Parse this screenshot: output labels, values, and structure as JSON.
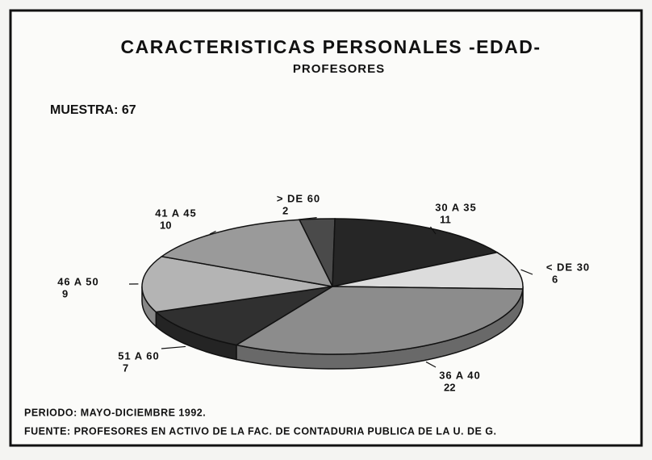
{
  "chart_data": {
    "type": "pie",
    "title": "CARACTERISTICAS PERSONALES -EDAD-",
    "subtitle": "PROFESORES",
    "annotations": [
      "MUESTRA: 67",
      "PERIODO: MAYO-DICIEMBRE 1992.",
      "FUENTE: PROFESORES EN ACTIVO DE LA FAC. DE CONTADURIA PUBLICA DE LA U. DE G."
    ],
    "categories": [
      "> DE 60",
      "30 A 35",
      "< DE 30",
      "36 A 40",
      "51 A 60",
      "46 A 50",
      "41 A 45"
    ],
    "values": [
      2,
      11,
      6,
      22,
      7,
      9,
      10
    ],
    "colors": [
      "#4a4a4a",
      "#262626",
      "#dcdcdc",
      "#8c8c8c",
      "#303030",
      "#b4b4b4",
      "#9a9a9a"
    ]
  }
}
